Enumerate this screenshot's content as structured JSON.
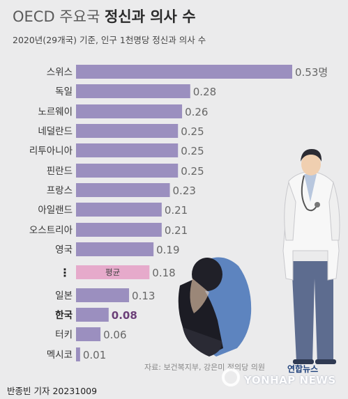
{
  "header": {
    "title_prefix": "OECD 주요국",
    "title_main": "정신과 의사 수",
    "subtitle": "2020년(29개국) 기준, 인구 1천명당 정신과 의사 수"
  },
  "chart_data": {
    "type": "bar",
    "orientation": "horizontal",
    "title": "OECD 주요국 정신과 의사 수",
    "subtitle": "2020년(29개국) 기준, 인구 1천명당 정신과 의사 수",
    "unit": "명",
    "categories": [
      "스위스",
      "독일",
      "노르웨이",
      "네덜란드",
      "리투아니아",
      "핀란드",
      "프랑스",
      "아일랜드",
      "오스트리아",
      "영국",
      "평균",
      "일본",
      "한국",
      "터키",
      "멕시코"
    ],
    "values": [
      0.53,
      0.28,
      0.26,
      0.25,
      0.25,
      0.25,
      0.23,
      0.21,
      0.21,
      0.19,
      0.18,
      0.13,
      0.08,
      0.06,
      0.01
    ],
    "value_labels": [
      "0.53명",
      "0.28",
      "0.26",
      "0.25",
      "0.25",
      "0.25",
      "0.23",
      "0.21",
      "0.21",
      "0.19",
      "0.18",
      "0.13",
      "0.08",
      "0.06",
      "0.01"
    ],
    "ellipsis_marker": "⋮",
    "highlight": {
      "평균": "average",
      "한국": "korea"
    },
    "colors": {
      "bar": "#9b8fbf",
      "average_bar": "#e6aacb",
      "korea_label": "#6b3f78",
      "label": "#333333",
      "value": "#666666"
    }
  },
  "footer": {
    "source": "자료: 보건복지부, 강은미 정의당 의원",
    "byline": "반종빈 기자  20231009",
    "logo_brand": "연합뉴스",
    "logo_wordmark": "YONHAP NEWS"
  }
}
